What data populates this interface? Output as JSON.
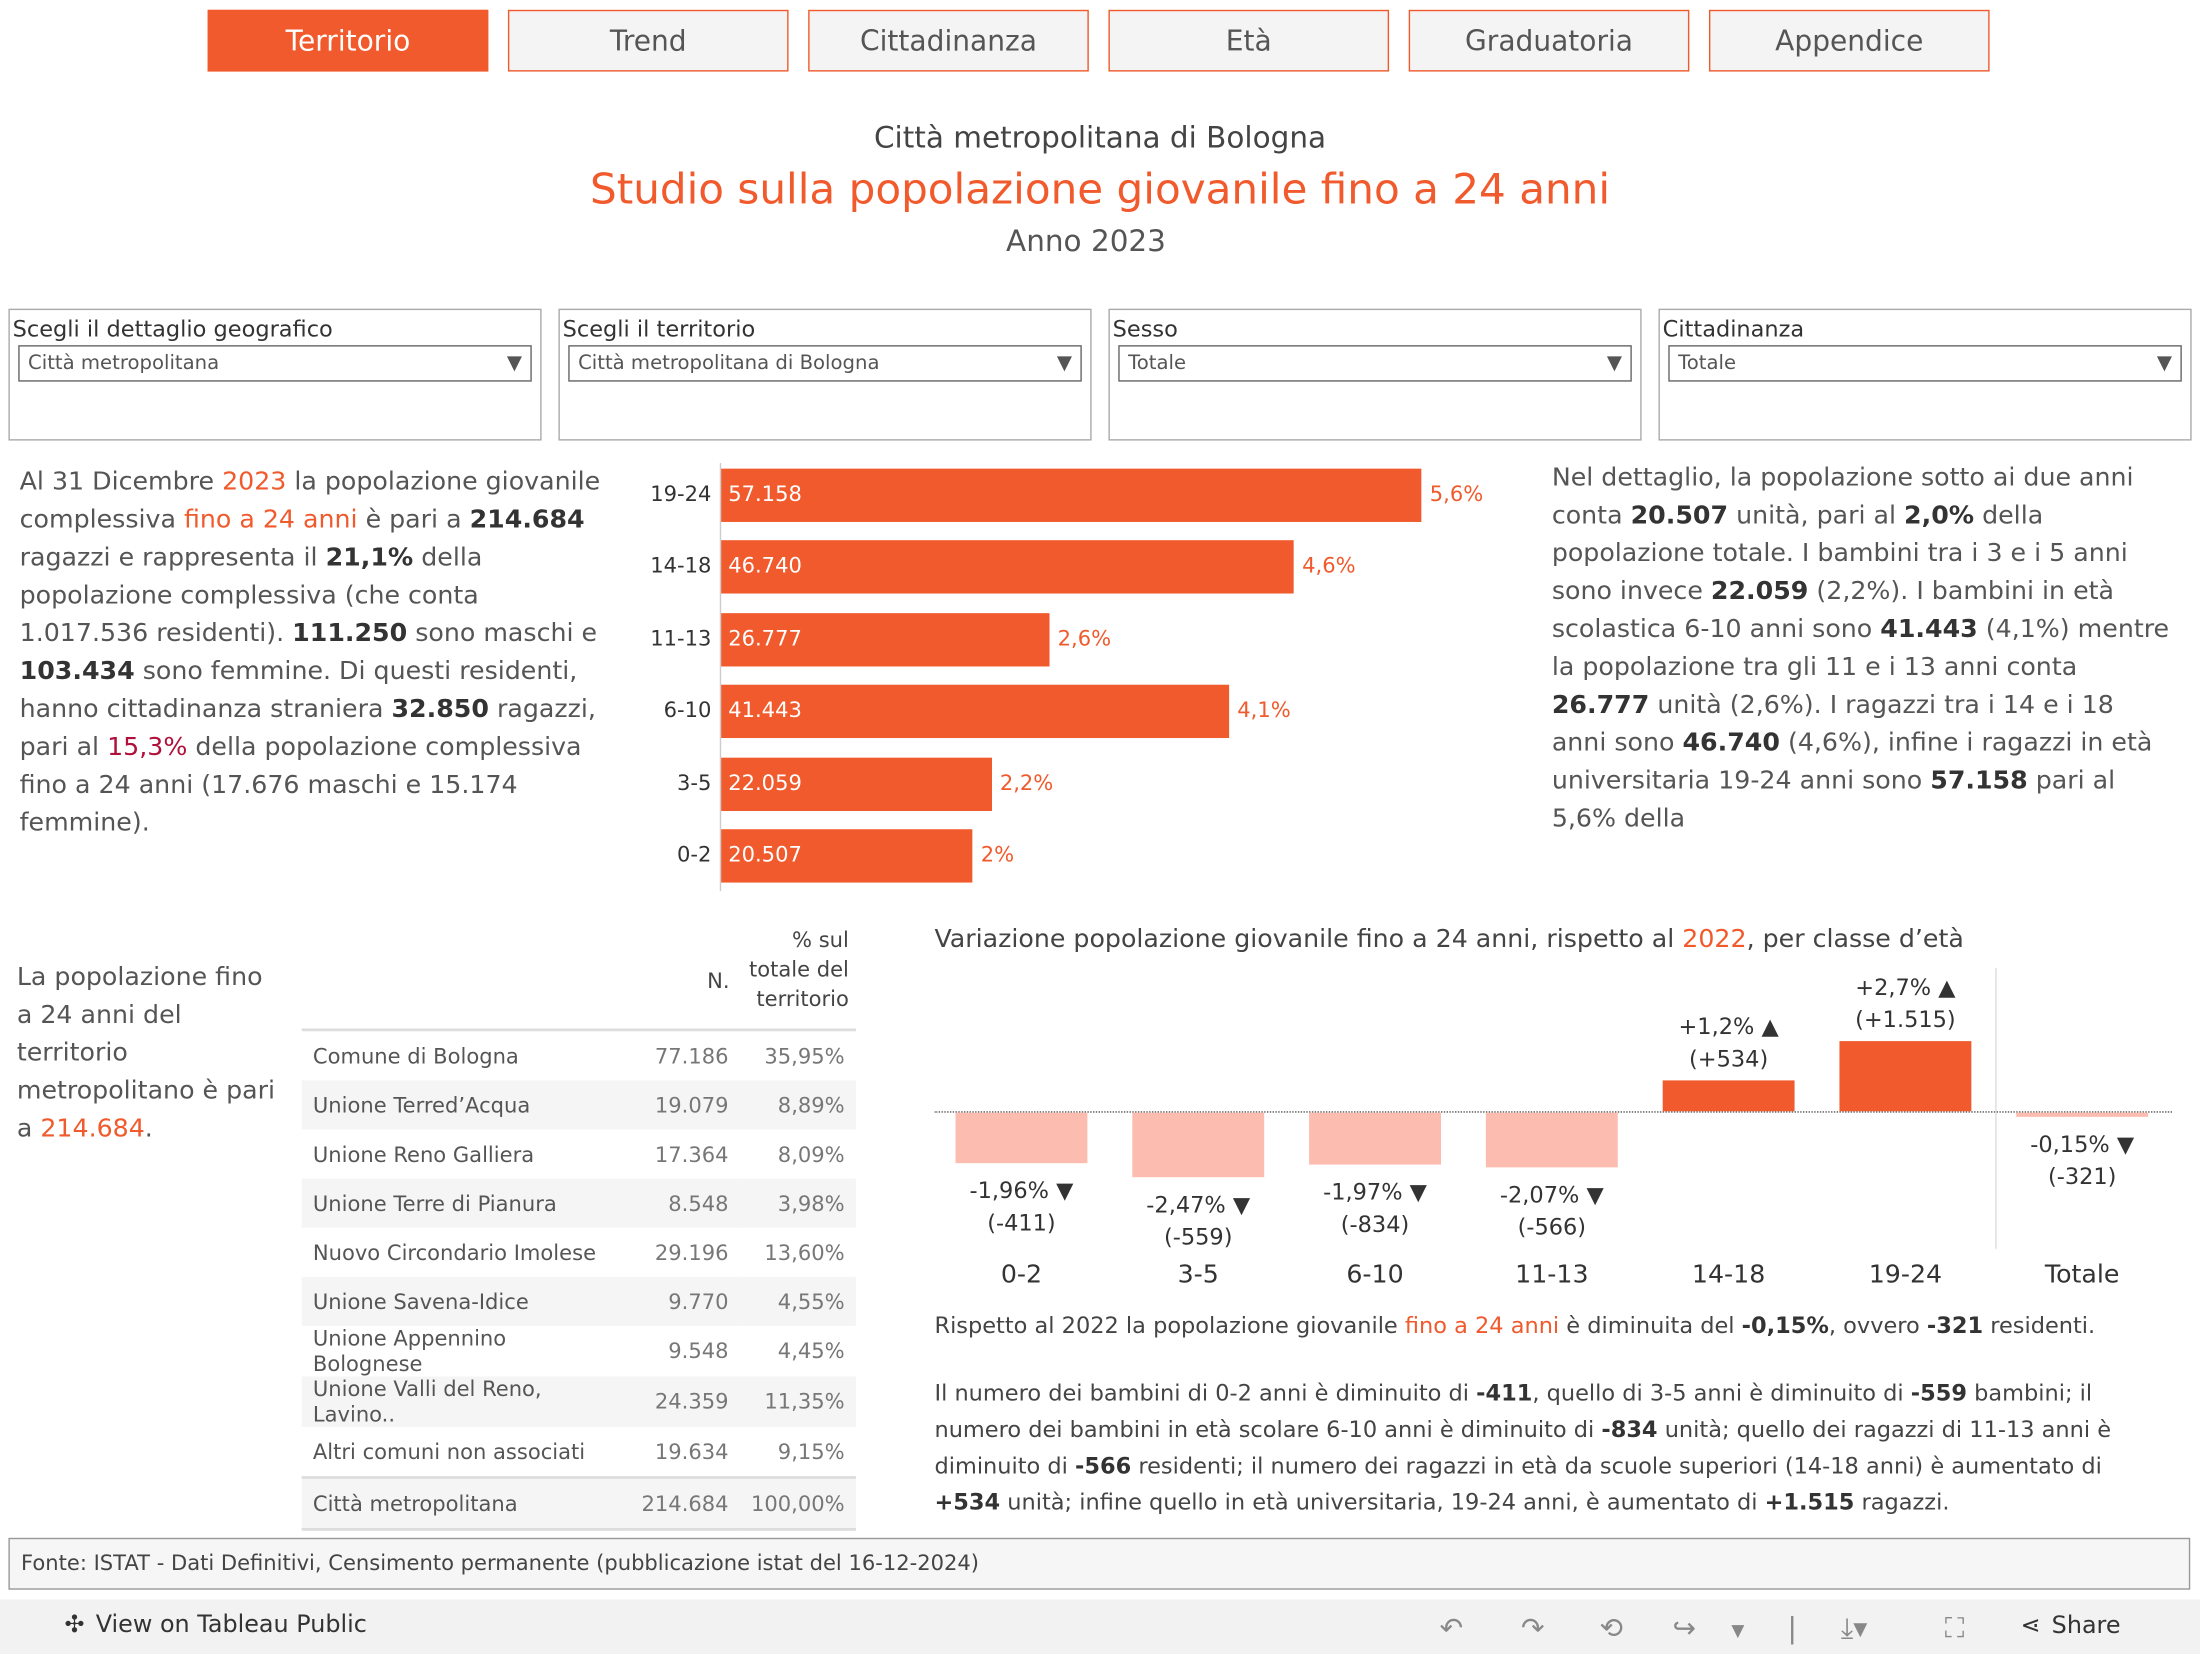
{
  "tabs": [
    "Territorio",
    "Trend",
    "Cittadinanza",
    "Età",
    "Graduatoria",
    "Appendice"
  ],
  "active_tab": "Territorio",
  "header": {
    "subtitle": "Città metropolitana di Bologna",
    "title": "Studio sulla popolazione giovanile fino a 24 anni",
    "year": "Anno 2023"
  },
  "filters": [
    {
      "label": "Scegli il dettaglio geografico",
      "value": "Città metropolitana"
    },
    {
      "label": "Scegli il territorio",
      "value": "Città metropolitana di Bologna"
    },
    {
      "label": "Sesso",
      "value": "Totale"
    },
    {
      "label": "Cittadinanza",
      "value": "Totale"
    }
  ],
  "intro": {
    "p1": "Al 31 Dicembre ",
    "year": "2023",
    "p2": " la popolazione giovanile complessiva ",
    "hl": "fino a 24 anni",
    "p3": " è pari a ",
    "total": "214.684",
    "p4": " ragazzi e rappresenta il ",
    "pct": "21,1%",
    "p5": " della popolazione complessiva (che conta 1.017.536 residenti). ",
    "m": "111.250",
    "p6": " sono maschi e ",
    "f": "103.434",
    "p7": " sono femmine. Di questi residenti, hanno cittadinanza straniera ",
    "str": "32.850",
    "p8": " ragazzi, pari al ",
    "strpct": "15,3%",
    "p9": " della popolazione complessiva fino a 24 anni (17.676 maschi e 15.174 femmine)."
  },
  "detail": {
    "p1": "Nel dettaglio, la popolazione sotto ai due anni conta ",
    "a": "20.507",
    "p2": " unità, pari al ",
    "b": "2,0%",
    "p3": " della popolazione totale. I bambini tra i 3 e i 5 anni sono invece ",
    "c": "22.059",
    "p4": " (2,2%). I bambini in età scolastica 6-10 anni sono ",
    "d": "41.443",
    "p5": " (4,1%) mentre la popolazione tra gli 11 e i 13 anni conta ",
    "e": "26.777",
    "p6": " unità (2,6%). I ragazzi tra i 14 e i 18 anni sono ",
    "f": "46.740",
    "p7": " (4,6%), infine i ragazzi in età universitaria 19-24 anni sono ",
    "g": "57.158",
    "p8": " pari al 5,6% della"
  },
  "chart_data": [
    {
      "type": "bar",
      "orientation": "horizontal",
      "categories": [
        "19-24",
        "14-18",
        "11-13",
        "6-10",
        "3-5",
        "0-2"
      ],
      "values": [
        57158,
        46740,
        26777,
        41443,
        22059,
        20507
      ],
      "value_labels": [
        "57.158",
        "46.740",
        "26.777",
        "41.443",
        "22.059",
        "20.507"
      ],
      "pct_labels": [
        "5,6%",
        "4,6%",
        "2,6%",
        "4,1%",
        "2,2%",
        "2%"
      ],
      "color": "#f05a2c"
    },
    {
      "type": "bar",
      "title_pre": "Variazione popolazione giovanile fino a 24 anni, rispetto al ",
      "title_year": "2022",
      "title_post": ", per classe d’età",
      "categories": [
        "0-2",
        "3-5",
        "6-10",
        "11-13",
        "14-18",
        "19-24",
        "Totale"
      ],
      "values": [
        -1.96,
        -2.47,
        -1.97,
        -2.07,
        1.2,
        2.7,
        -0.15
      ],
      "pct_labels": [
        "-1,96%",
        "-2,47%",
        "-1,97%",
        "-2,07%",
        "+1,2%",
        "+2,7%",
        "-0,15%"
      ],
      "abs_labels": [
        "(-411)",
        "(-559)",
        "(-834)",
        "(-566)",
        "(+534)",
        "(+1.515)",
        "(-321)"
      ],
      "colors": {
        "positive": "#f05a2c",
        "negative": "#fcbcb0"
      }
    }
  ],
  "table": {
    "side_text_pre": "La popolazione fino a 24 anni del territorio metropolitano è pari a ",
    "side_value": "214.684",
    "side_post": ".",
    "col_n": "N.",
    "col_pct": "% sul totale del territorio",
    "rows": [
      [
        "Comune di Bologna",
        "77.186",
        "35,95%"
      ],
      [
        "Unione Terred’Acqua",
        "19.079",
        "8,89%"
      ],
      [
        "Unione Reno Galliera",
        "17.364",
        "8,09%"
      ],
      [
        "Unione Terre di Pianura",
        "8.548",
        "3,98%"
      ],
      [
        "Nuovo Circondario Imolese",
        "29.196",
        "13,60%"
      ],
      [
        "Unione Savena-Idice",
        "9.770",
        "4,55%"
      ],
      [
        "Unione Appennino Bolognese",
        "9.548",
        "4,45%"
      ],
      [
        "Unione Valli del Reno, Lavino..",
        "24.359",
        "11,35%"
      ],
      [
        "Altri comuni non associati",
        "19.634",
        "9,15%"
      ],
      [
        "Città metropolitana",
        "214.684",
        "100,00%"
      ]
    ]
  },
  "summary": {
    "p1": "Rispetto al 2022 la popolazione giovanile ",
    "hl": "fino a 24 anni",
    "p2": " è  diminuita del ",
    "pct": "-0,15%",
    "p3": ", ovvero ",
    "n": "-321",
    "p4": " residenti."
  },
  "detail2": {
    "p1": "Il numero dei bambini di 0-2 anni è diminuito di ",
    "a": "-411",
    "p2": ", quello di 3-5 anni è diminuito di ",
    "b": "-559",
    "p3": " bambini; il numero dei bambini in età scolare 6-10 anni è diminuito di ",
    "c": "-834",
    "p4": " unità; quello dei ragazzi di 11-13 anni è diminuito di ",
    "d": "-566",
    "p5": " residenti; il numero dei ragazzi in età da scuole superiori (14-18 anni) è aumentato di ",
    "e": "+534",
    "p6": " unità; infine quello in età universitaria, 19-24 anni, è aumentato di ",
    "f": "+1.515",
    "p7": " ragazzi."
  },
  "source": "Fonte: ISTAT - Dati Definitivi, Censimento permanente (pubblicazione istat del 16-12-2024)",
  "footer": {
    "view_label": "View on Tableau Public",
    "share_label": "Share"
  }
}
